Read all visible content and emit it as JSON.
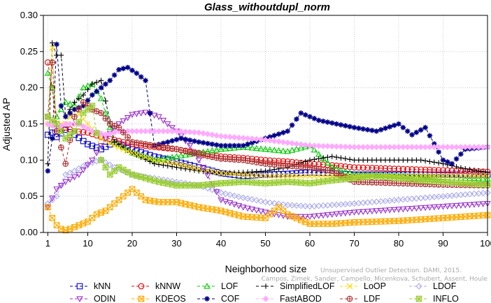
{
  "chart_data": {
    "type": "line",
    "title": "Glass_withoutdupl_norm",
    "xlabel": "Neighborhood size",
    "ylabel": "Adjusted AP",
    "xlim": [
      0,
      100
    ],
    "ylim": [
      0,
      0.3
    ],
    "x_ticks": [
      "1",
      "10",
      "20",
      "30",
      "40",
      "50",
      "60",
      "70",
      "80",
      "90",
      "100"
    ],
    "y_ticks": [
      "0.00",
      "0.05",
      "0.10",
      "0.15",
      "0.20",
      "0.25",
      "0.30"
    ],
    "credit": "Campos, Zimek, Sander, Campello, Micenkova, Schubert, Assent, Houle",
    "credit_line1": "Unsupervised Outlier Detection. DAMI, 2015.",
    "legend_position": "bottom",
    "series": [
      {
        "name": "kNN",
        "color": "#0000cc",
        "marker": "square",
        "x": [
          1,
          2,
          3,
          5,
          7,
          10,
          13,
          16,
          20,
          25,
          30,
          35,
          40,
          45,
          50,
          55,
          60,
          65,
          70,
          80,
          90,
          100
        ],
        "y": [
          0.135,
          0.138,
          0.132,
          0.142,
          0.135,
          0.122,
          0.115,
          0.125,
          0.115,
          0.105,
          0.098,
          0.09,
          0.082,
          0.078,
          0.08,
          0.081,
          0.083,
          0.082,
          0.08,
          0.08,
          0.08,
          0.08
        ]
      },
      {
        "name": "kNNW",
        "color": "#ee0000",
        "marker": "circle",
        "x": [
          1,
          2,
          3,
          5,
          7,
          10,
          13,
          16,
          20,
          25,
          30,
          35,
          40,
          45,
          50,
          55,
          60,
          65,
          70,
          80,
          90,
          100
        ],
        "y": [
          0.235,
          0.2,
          0.14,
          0.145,
          0.14,
          0.138,
          0.132,
          0.128,
          0.122,
          0.118,
          0.115,
          0.11,
          0.105,
          0.103,
          0.1,
          0.098,
          0.095,
          0.093,
          0.09,
          0.088,
          0.086,
          0.084
        ]
      },
      {
        "name": "LOF",
        "color": "#00cc00",
        "marker": "triangle-up",
        "x": [
          1,
          2,
          3,
          5,
          7,
          9,
          11,
          13,
          16,
          20,
          25,
          30,
          35,
          40,
          45,
          50,
          55,
          60,
          65,
          70,
          80,
          90,
          100
        ],
        "y": [
          0.22,
          0.2,
          0.16,
          0.18,
          0.175,
          0.2,
          0.205,
          0.185,
          0.125,
          0.11,
          0.1,
          0.105,
          0.11,
          0.115,
          0.118,
          0.115,
          0.112,
          0.12,
          0.09,
          0.08,
          0.078,
          0.076,
          0.074
        ]
      },
      {
        "name": "SimplifiedLOF",
        "color": "#000000",
        "marker": "plus",
        "x": [
          1,
          2,
          3,
          4,
          5,
          7,
          9,
          11,
          13,
          16,
          20,
          25,
          30,
          35,
          40,
          45,
          50,
          55,
          60,
          65,
          70,
          75,
          80,
          85,
          90,
          95,
          100
        ],
        "y": [
          0.095,
          0.262,
          0.245,
          0.245,
          0.16,
          0.18,
          0.19,
          0.205,
          0.21,
          0.125,
          0.11,
          0.095,
          0.09,
          0.085,
          0.082,
          0.083,
          0.085,
          0.09,
          0.1,
          0.105,
          0.1,
          0.1,
          0.1,
          0.1,
          0.095,
          0.088,
          0.083
        ]
      },
      {
        "name": "LoOP",
        "color": "#ffd700",
        "marker": "x",
        "x": [
          1,
          2,
          3,
          5,
          7,
          10,
          13,
          16,
          20,
          25,
          30,
          35,
          40,
          45,
          50,
          55,
          60,
          65,
          70,
          80,
          90,
          100
        ],
        "y": [
          0.15,
          0.255,
          0.15,
          0.15,
          0.17,
          0.15,
          0.13,
          0.12,
          0.11,
          0.1,
          0.095,
          0.088,
          0.082,
          0.08,
          0.078,
          0.078,
          0.078,
          0.078,
          0.078,
          0.078,
          0.078,
          0.078
        ]
      },
      {
        "name": "LDOF",
        "color": "#aaaaee",
        "marker": "diamond",
        "x": [
          1,
          3,
          5,
          7,
          10,
          13,
          16,
          20,
          25,
          30,
          35,
          40,
          45,
          50,
          55,
          60,
          65,
          70,
          80,
          90,
          100
        ],
        "y": [
          0.04,
          0.05,
          0.08,
          0.085,
          0.095,
          0.1,
          0.09,
          0.08,
          0.075,
          0.07,
          0.065,
          0.055,
          0.048,
          0.042,
          0.038,
          0.036,
          0.038,
          0.04,
          0.045,
          0.05,
          0.055
        ]
      },
      {
        "name": "ODIN",
        "color": "#9933cc",
        "marker": "triangle-down",
        "x": [
          1,
          3,
          5,
          8,
          11,
          14,
          17,
          20,
          23,
          26,
          30,
          33,
          36,
          40,
          45,
          50,
          55,
          60,
          65,
          70,
          80,
          90,
          100
        ],
        "y": [
          0.035,
          0.06,
          0.07,
          0.08,
          0.1,
          0.13,
          0.15,
          0.163,
          0.166,
          0.16,
          0.14,
          0.12,
          0.09,
          0.045,
          0.035,
          0.028,
          0.022,
          0.022,
          0.025,
          0.028,
          0.032,
          0.036,
          0.04
        ]
      },
      {
        "name": "KDEOS",
        "color": "#ffaa00",
        "marker": "square-x",
        "x": [
          1,
          2,
          3,
          4,
          5,
          6,
          8,
          10,
          12,
          14,
          16,
          18,
          20,
          23,
          26,
          30,
          35,
          40,
          45,
          50,
          53,
          55,
          60,
          65,
          70,
          80,
          90,
          100
        ],
        "y": [
          0.035,
          0.02,
          0.01,
          0.005,
          0.003,
          0.005,
          0.01,
          0.015,
          0.025,
          0.03,
          0.04,
          0.05,
          0.06,
          0.045,
          0.042,
          0.042,
          0.035,
          0.03,
          0.022,
          0.02,
          0.035,
          0.025,
          0.012,
          0.012,
          0.014,
          0.016,
          0.02,
          0.024
        ]
      },
      {
        "name": "COF",
        "color": "#000088",
        "marker": "asterisk",
        "x": [
          1,
          2,
          3,
          4,
          5,
          7,
          9,
          11,
          13,
          15,
          17,
          19,
          21,
          23,
          25,
          28,
          31,
          35,
          40,
          45,
          50,
          55,
          58,
          62,
          66,
          70,
          75,
          80,
          83,
          86,
          90,
          92,
          95,
          100
        ],
        "y": [
          0.085,
          0.13,
          0.26,
          0.175,
          0.16,
          0.17,
          0.175,
          0.19,
          0.2,
          0.21,
          0.225,
          0.228,
          0.22,
          0.21,
          0.12,
          0.125,
          0.13,
          0.125,
          0.12,
          0.12,
          0.13,
          0.14,
          0.165,
          0.155,
          0.15,
          0.145,
          0.14,
          0.15,
          0.135,
          0.145,
          0.1,
          0.095,
          0.115,
          0.118
        ]
      },
      {
        "name": "FastABOD",
        "color": "#ffaaff",
        "marker": "diamond-filled",
        "x": [
          1,
          3,
          5,
          8,
          11,
          14,
          17,
          20,
          25,
          30,
          35,
          40,
          50,
          60,
          70,
          80,
          90,
          100
        ],
        "y": [
          0.15,
          0.145,
          0.15,
          0.15,
          0.14,
          0.135,
          0.14,
          0.14,
          0.14,
          0.14,
          0.138,
          0.133,
          0.128,
          0.12,
          0.118,
          0.118,
          0.118,
          0.118
        ]
      },
      {
        "name": "LDF",
        "color": "#aa3333",
        "marker": "circle-plus",
        "x": [
          1,
          2,
          3,
          5,
          7,
          9,
          11,
          13,
          15,
          17,
          20,
          25,
          30,
          35,
          40,
          45,
          50,
          55,
          60,
          65,
          70,
          80,
          90,
          100
        ],
        "y": [
          0.16,
          0.235,
          0.14,
          0.095,
          0.16,
          0.18,
          0.17,
          0.165,
          0.15,
          0.145,
          0.125,
          0.12,
          0.115,
          0.108,
          0.102,
          0.1,
          0.095,
          0.092,
          0.09,
          0.085,
          0.07,
          0.068,
          0.066,
          0.065
        ]
      },
      {
        "name": "INFLO",
        "color": "#99cc33",
        "marker": "square-star",
        "x": [
          1,
          3,
          5,
          7,
          9,
          11,
          13,
          15,
          17,
          20,
          23,
          26,
          30,
          35,
          40,
          45,
          50,
          55,
          60,
          65,
          70,
          75,
          80,
          85,
          90,
          95,
          100
        ],
        "y": [
          0.16,
          0.15,
          0.13,
          0.14,
          0.165,
          0.175,
          0.1,
          0.08,
          0.09,
          0.08,
          0.075,
          0.07,
          0.065,
          0.065,
          0.068,
          0.07,
          0.068,
          0.07,
          0.068,
          0.072,
          0.075,
          0.078,
          0.075,
          0.072,
          0.07,
          0.068,
          0.066
        ]
      }
    ]
  }
}
